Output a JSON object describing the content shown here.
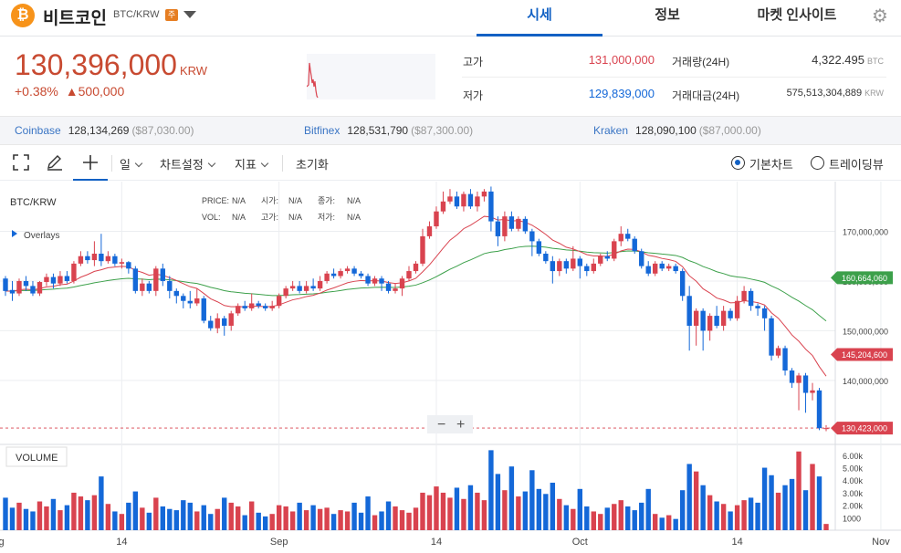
{
  "header": {
    "coin_symbol_glyph": "₿",
    "coin_name": "비트코인",
    "pair": "BTC/KRW",
    "warning_badge": "주",
    "tabs": [
      {
        "label": "시세",
        "active": true
      },
      {
        "label": "정보",
        "active": false
      },
      {
        "label": "마켓 인사이트",
        "active": false
      }
    ]
  },
  "price": {
    "current": "130,396,000",
    "unit": "KRW",
    "change_percent": "+0.38%",
    "change_arrow": "▲",
    "change_amount": "500,000",
    "high_label": "고가",
    "high": "131,000,000",
    "low_label": "저가",
    "low": "129,839,000",
    "volume_label": "거래량(24H)",
    "volume": "4,322.495",
    "volume_unit": "BTC",
    "amount_label": "거래대금(24H)",
    "amount": "575,513,304,889",
    "amount_unit": "KRW"
  },
  "exchanges": [
    {
      "name": "Coinbase",
      "price": "128,134,269",
      "usd": "($87,030.00)"
    },
    {
      "name": "Bitfinex",
      "price": "128,531,790",
      "usd": "($87,300.00)"
    },
    {
      "name": "Kraken",
      "price": "128,090,100",
      "usd": "($87,000.00)"
    }
  ],
  "toolbar": {
    "period": "일",
    "chart_settings": "차트설정",
    "indicators": "지표",
    "reset": "초기화",
    "basic_chart": "기본차트",
    "tradingview": "트레이딩뷰"
  },
  "chart_data": {
    "type": "candlestick",
    "symbol": "BTC/KRW",
    "overlays_label": "Overlays",
    "legend": {
      "price_label": "PRICE:",
      "price": "N/A",
      "open_label": "시가:",
      "open": "N/A",
      "close_label": "종가:",
      "close": "N/A",
      "vol_label": "VOL:",
      "vol": "N/A",
      "high_label": "고가:",
      "high": "N/A",
      "low_label": "저가:",
      "low": "N/A"
    },
    "y_ticks": [
      "170,000,000",
      "160,000,000",
      "150,000,000",
      "140,000,000"
    ],
    "y_tick_values": [
      170000000,
      160000000,
      150000000,
      140000000
    ],
    "ylim": [
      127500000,
      180000000
    ],
    "price_tags": [
      {
        "label": "160,664,060",
        "value": 160664060,
        "color": "#3ca04a"
      },
      {
        "label": "145,204,600",
        "value": 145204600,
        "color": "#d9434f"
      },
      {
        "label": "130,423,000",
        "value": 130423000,
        "color": "#d9434f"
      }
    ],
    "x_ticks": [
      "ug",
      "14",
      "Sep",
      "14",
      "Oct",
      "14",
      "Nov",
      "14"
    ],
    "volume_title": "VOLUME",
    "volume_ticks": [
      "6.00k",
      "5.00k",
      "4.00k",
      "3.00k",
      "2.00k",
      "1000"
    ],
    "volume_tick_values": [
      6000,
      5000,
      4000,
      3000,
      2000,
      1000
    ],
    "volume_max": 6500,
    "zoom_out": "−",
    "zoom_in": "+",
    "up_color": "#d9434f",
    "down_color": "#1468d8",
    "candles": [
      {
        "o": 160.5,
        "c": 158.0,
        "h": 161.0,
        "l": 157.0,
        "v": 2600
      },
      {
        "o": 158.2,
        "c": 157.5,
        "h": 160.0,
        "l": 156.0,
        "v": 1800
      },
      {
        "o": 157.5,
        "c": 160.0,
        "h": 160.5,
        "l": 157.0,
        "v": 2200
      },
      {
        "o": 160.0,
        "c": 159.0,
        "h": 161.0,
        "l": 158.0,
        "v": 1700
      },
      {
        "o": 159.0,
        "c": 157.5,
        "h": 160.0,
        "l": 157.0,
        "v": 1500
      },
      {
        "o": 157.5,
        "c": 159.8,
        "h": 160.0,
        "l": 157.0,
        "v": 2300
      },
      {
        "o": 159.8,
        "c": 160.8,
        "h": 161.5,
        "l": 159.0,
        "v": 1900
      },
      {
        "o": 160.8,
        "c": 159.5,
        "h": 161.5,
        "l": 158.5,
        "v": 2500
      },
      {
        "o": 159.5,
        "c": 161.0,
        "h": 162.0,
        "l": 159.0,
        "v": 1600
      },
      {
        "o": 161.0,
        "c": 160.0,
        "h": 162.0,
        "l": 159.5,
        "v": 2000
      },
      {
        "o": 160.0,
        "c": 163.5,
        "h": 164.0,
        "l": 159.5,
        "v": 3000
      },
      {
        "o": 163.5,
        "c": 165.0,
        "h": 166.0,
        "l": 163.0,
        "v": 2700
      },
      {
        "o": 165.0,
        "c": 164.2,
        "h": 166.0,
        "l": 163.5,
        "v": 2400
      },
      {
        "o": 164.2,
        "c": 165.5,
        "h": 168.0,
        "l": 163.0,
        "v": 2800
      },
      {
        "o": 165.5,
        "c": 164.0,
        "h": 169.5,
        "l": 163.0,
        "v": 4300
      },
      {
        "o": 164.0,
        "c": 165.0,
        "h": 166.0,
        "l": 163.5,
        "v": 2100
      },
      {
        "o": 165.0,
        "c": 163.5,
        "h": 165.5,
        "l": 163.0,
        "v": 1500
      },
      {
        "o": 163.5,
        "c": 163.8,
        "h": 164.5,
        "l": 162.5,
        "v": 1300
      },
      {
        "o": 163.8,
        "c": 162.5,
        "h": 164.0,
        "l": 161.5,
        "v": 2200
      },
      {
        "o": 162.5,
        "c": 158.0,
        "h": 163.0,
        "l": 157.5,
        "v": 3100
      },
      {
        "o": 158.0,
        "c": 159.5,
        "h": 160.5,
        "l": 157.0,
        "v": 1800
      },
      {
        "o": 159.5,
        "c": 158.0,
        "h": 160.0,
        "l": 157.5,
        "v": 1400
      },
      {
        "o": 158.0,
        "c": 162.5,
        "h": 163.0,
        "l": 157.0,
        "v": 2600
      },
      {
        "o": 162.5,
        "c": 160.0,
        "h": 163.5,
        "l": 159.0,
        "v": 1900
      },
      {
        "o": 160.0,
        "c": 158.0,
        "h": 161.0,
        "l": 156.5,
        "v": 1700
      },
      {
        "o": 158.0,
        "c": 157.0,
        "h": 158.5,
        "l": 155.5,
        "v": 1600
      },
      {
        "o": 157.0,
        "c": 156.0,
        "h": 157.5,
        "l": 154.5,
        "v": 2400
      },
      {
        "o": 156.0,
        "c": 155.5,
        "h": 158.0,
        "l": 154.5,
        "v": 2200
      },
      {
        "o": 155.5,
        "c": 156.5,
        "h": 158.5,
        "l": 155.0,
        "v": 1500
      },
      {
        "o": 156.5,
        "c": 152.0,
        "h": 157.0,
        "l": 151.5,
        "v": 2000
      },
      {
        "o": 152.0,
        "c": 150.5,
        "h": 153.0,
        "l": 150.0,
        "v": 1300
      },
      {
        "o": 150.5,
        "c": 152.5,
        "h": 153.5,
        "l": 149.5,
        "v": 1700
      },
      {
        "o": 152.5,
        "c": 151.0,
        "h": 153.0,
        "l": 149.0,
        "v": 2600
      },
      {
        "o": 151.0,
        "c": 153.5,
        "h": 154.0,
        "l": 150.0,
        "v": 2200
      },
      {
        "o": 153.5,
        "c": 155.0,
        "h": 155.5,
        "l": 153.0,
        "v": 1900
      },
      {
        "o": 155.0,
        "c": 154.5,
        "h": 156.0,
        "l": 154.0,
        "v": 1200
      },
      {
        "o": 154.5,
        "c": 155.5,
        "h": 157.5,
        "l": 154.0,
        "v": 2300
      },
      {
        "o": 155.5,
        "c": 155.0,
        "h": 156.0,
        "l": 154.5,
        "v": 1400
      },
      {
        "o": 155.0,
        "c": 154.5,
        "h": 155.5,
        "l": 154.0,
        "v": 1100
      },
      {
        "o": 154.5,
        "c": 155.0,
        "h": 156.0,
        "l": 154.0,
        "v": 1300
      },
      {
        "o": 155.0,
        "c": 157.0,
        "h": 157.5,
        "l": 154.5,
        "v": 2000
      },
      {
        "o": 157.0,
        "c": 158.5,
        "h": 159.0,
        "l": 156.5,
        "v": 1900
      },
      {
        "o": 158.5,
        "c": 159.0,
        "h": 160.0,
        "l": 158.0,
        "v": 1500
      },
      {
        "o": 159.0,
        "c": 158.0,
        "h": 160.0,
        "l": 157.5,
        "v": 2200
      },
      {
        "o": 158.0,
        "c": 159.0,
        "h": 160.0,
        "l": 157.5,
        "v": 1600
      },
      {
        "o": 159.0,
        "c": 158.5,
        "h": 160.5,
        "l": 158.0,
        "v": 2000
      },
      {
        "o": 158.5,
        "c": 160.0,
        "h": 161.0,
        "l": 158.0,
        "v": 1700
      },
      {
        "o": 160.0,
        "c": 161.5,
        "h": 162.0,
        "l": 159.5,
        "v": 1800
      },
      {
        "o": 161.5,
        "c": 161.0,
        "h": 162.5,
        "l": 160.5,
        "v": 1300
      },
      {
        "o": 161.0,
        "c": 162.0,
        "h": 162.5,
        "l": 160.5,
        "v": 1600
      },
      {
        "o": 162.0,
        "c": 162.5,
        "h": 163.0,
        "l": 161.5,
        "v": 1500
      },
      {
        "o": 162.5,
        "c": 161.5,
        "h": 163.0,
        "l": 161.0,
        "v": 2200
      },
      {
        "o": 161.5,
        "c": 161.0,
        "h": 162.0,
        "l": 160.5,
        "v": 1400
      },
      {
        "o": 161.0,
        "c": 159.5,
        "h": 161.5,
        "l": 159.0,
        "v": 2700
      },
      {
        "o": 159.5,
        "c": 160.5,
        "h": 161.0,
        "l": 159.0,
        "v": 1200
      },
      {
        "o": 160.5,
        "c": 159.5,
        "h": 161.0,
        "l": 158.0,
        "v": 1500
      },
      {
        "o": 159.5,
        "c": 158.0,
        "h": 160.0,
        "l": 157.5,
        "v": 2300
      },
      {
        "o": 158.0,
        "c": 158.5,
        "h": 159.5,
        "l": 157.5,
        "v": 1900
      },
      {
        "o": 158.5,
        "c": 160.5,
        "h": 161.0,
        "l": 157.0,
        "v": 1600
      },
      {
        "o": 160.5,
        "c": 162.0,
        "h": 163.0,
        "l": 160.0,
        "v": 1400
      },
      {
        "o": 162.0,
        "c": 163.5,
        "h": 164.0,
        "l": 161.5,
        "v": 1800
      },
      {
        "o": 163.5,
        "c": 169.0,
        "h": 170.5,
        "l": 163.0,
        "v": 3000
      },
      {
        "o": 169.0,
        "c": 171.0,
        "h": 172.0,
        "l": 168.5,
        "v": 2800
      },
      {
        "o": 171.0,
        "c": 174.0,
        "h": 175.0,
        "l": 170.5,
        "v": 3500
      },
      {
        "o": 174.0,
        "c": 176.0,
        "h": 178.0,
        "l": 173.5,
        "v": 3000
      },
      {
        "o": 176.0,
        "c": 177.0,
        "h": 178.5,
        "l": 175.5,
        "v": 2600
      },
      {
        "o": 177.0,
        "c": 175.0,
        "h": 178.0,
        "l": 174.5,
        "v": 3400
      },
      {
        "o": 175.0,
        "c": 177.5,
        "h": 178.0,
        "l": 174.0,
        "v": 2500
      },
      {
        "o": 177.5,
        "c": 175.0,
        "h": 178.5,
        "l": 174.5,
        "v": 3600
      },
      {
        "o": 175.0,
        "c": 177.0,
        "h": 178.0,
        "l": 174.0,
        "v": 3000
      },
      {
        "o": 177.0,
        "c": 178.0,
        "h": 178.5,
        "l": 176.0,
        "v": 2400
      },
      {
        "o": 178.0,
        "c": 172.0,
        "h": 179.0,
        "l": 170.0,
        "v": 6400
      },
      {
        "o": 172.0,
        "c": 169.0,
        "h": 173.0,
        "l": 167.0,
        "v": 4500
      },
      {
        "o": 169.0,
        "c": 173.0,
        "h": 174.0,
        "l": 168.0,
        "v": 3200
      },
      {
        "o": 173.0,
        "c": 170.5,
        "h": 174.0,
        "l": 170.0,
        "v": 5100
      },
      {
        "o": 170.5,
        "c": 172.5,
        "h": 173.0,
        "l": 170.0,
        "v": 2700
      },
      {
        "o": 172.5,
        "c": 170.0,
        "h": 173.0,
        "l": 169.5,
        "v": 3100
      },
      {
        "o": 170.0,
        "c": 168.0,
        "h": 170.5,
        "l": 165.0,
        "v": 4800
      },
      {
        "o": 168.0,
        "c": 165.5,
        "h": 168.5,
        "l": 165.0,
        "v": 3300
      },
      {
        "o": 165.5,
        "c": 164.0,
        "h": 166.0,
        "l": 163.5,
        "v": 2900
      },
      {
        "o": 164.0,
        "c": 162.0,
        "h": 165.0,
        "l": 159.5,
        "v": 3800
      },
      {
        "o": 162.0,
        "c": 164.0,
        "h": 164.5,
        "l": 161.0,
        "v": 2500
      },
      {
        "o": 164.0,
        "c": 162.5,
        "h": 164.5,
        "l": 161.5,
        "v": 2000
      },
      {
        "o": 162.5,
        "c": 164.5,
        "h": 167.0,
        "l": 162.0,
        "v": 1700
      },
      {
        "o": 164.5,
        "c": 163.0,
        "h": 165.0,
        "l": 160.5,
        "v": 3300
      },
      {
        "o": 163.0,
        "c": 162.0,
        "h": 163.5,
        "l": 161.0,
        "v": 1900
      },
      {
        "o": 162.0,
        "c": 163.5,
        "h": 164.5,
        "l": 161.5,
        "v": 1500
      },
      {
        "o": 163.5,
        "c": 165.0,
        "h": 165.5,
        "l": 163.0,
        "v": 1300
      },
      {
        "o": 165.0,
        "c": 164.5,
        "h": 166.0,
        "l": 164.0,
        "v": 1800
      },
      {
        "o": 164.5,
        "c": 168.0,
        "h": 168.5,
        "l": 164.0,
        "v": 2100
      },
      {
        "o": 168.0,
        "c": 169.5,
        "h": 171.0,
        "l": 167.0,
        "v": 2400
      },
      {
        "o": 169.5,
        "c": 168.5,
        "h": 170.5,
        "l": 168.0,
        "v": 1900
      },
      {
        "o": 168.5,
        "c": 166.0,
        "h": 169.0,
        "l": 165.5,
        "v": 1600
      },
      {
        "o": 166.0,
        "c": 163.0,
        "h": 166.5,
        "l": 162.5,
        "v": 2200
      },
      {
        "o": 163.0,
        "c": 161.5,
        "h": 164.0,
        "l": 161.0,
        "v": 3300
      },
      {
        "o": 161.5,
        "c": 163.5,
        "h": 164.0,
        "l": 161.0,
        "v": 1300
      },
      {
        "o": 163.5,
        "c": 162.5,
        "h": 164.0,
        "l": 162.0,
        "v": 1000
      },
      {
        "o": 162.5,
        "c": 163.0,
        "h": 163.5,
        "l": 162.0,
        "v": 1200
      },
      {
        "o": 163.0,
        "c": 162.0,
        "h": 163.5,
        "l": 161.5,
        "v": 900
      },
      {
        "o": 162.0,
        "c": 157.0,
        "h": 162.5,
        "l": 156.0,
        "v": 3200
      },
      {
        "o": 157.0,
        "c": 151.0,
        "h": 159.0,
        "l": 146.0,
        "v": 5300
      },
      {
        "o": 151.0,
        "c": 154.0,
        "h": 154.5,
        "l": 147.0,
        "v": 4700
      },
      {
        "o": 154.0,
        "c": 150.0,
        "h": 154.5,
        "l": 146.0,
        "v": 3600
      },
      {
        "o": 150.0,
        "c": 153.0,
        "h": 153.5,
        "l": 148.0,
        "v": 2800
      },
      {
        "o": 153.0,
        "c": 151.0,
        "h": 155.0,
        "l": 150.5,
        "v": 2300
      },
      {
        "o": 151.0,
        "c": 154.0,
        "h": 155.0,
        "l": 150.0,
        "v": 2100
      },
      {
        "o": 154.0,
        "c": 152.5,
        "h": 154.5,
        "l": 152.0,
        "v": 1500
      },
      {
        "o": 152.5,
        "c": 156.0,
        "h": 157.0,
        "l": 152.0,
        "v": 2000
      },
      {
        "o": 156.0,
        "c": 158.0,
        "h": 159.0,
        "l": 155.5,
        "v": 2400
      },
      {
        "o": 158.0,
        "c": 155.0,
        "h": 158.5,
        "l": 154.0,
        "v": 2600
      },
      {
        "o": 155.0,
        "c": 154.5,
        "h": 155.5,
        "l": 153.0,
        "v": 2200
      },
      {
        "o": 154.5,
        "c": 152.5,
        "h": 155.0,
        "l": 150.0,
        "v": 5000
      },
      {
        "o": 152.5,
        "c": 145.0,
        "h": 153.0,
        "l": 144.0,
        "v": 4400
      },
      {
        "o": 145.0,
        "c": 146.5,
        "h": 147.0,
        "l": 144.5,
        "v": 3000
      },
      {
        "o": 146.5,
        "c": 142.0,
        "h": 147.0,
        "l": 141.0,
        "v": 3600
      },
      {
        "o": 142.0,
        "c": 139.5,
        "h": 142.5,
        "l": 138.5,
        "v": 4100
      },
      {
        "o": 139.5,
        "c": 141.0,
        "h": 141.5,
        "l": 134.0,
        "v": 6300
      },
      {
        "o": 141.0,
        "c": 137.5,
        "h": 141.5,
        "l": 133.5,
        "v": 3200
      },
      {
        "o": 137.5,
        "c": 138.0,
        "h": 139.5,
        "l": 136.0,
        "v": 5300
      },
      {
        "o": 138.0,
        "c": 130.4,
        "h": 138.5,
        "l": 130.0,
        "v": 4300
      },
      {
        "o": 130.4,
        "c": 130.4,
        "h": 131.0,
        "l": 129.8,
        "v": 500
      }
    ]
  }
}
